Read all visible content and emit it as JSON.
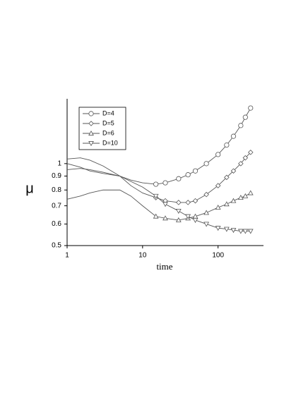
{
  "chart_data": {
    "type": "line",
    "xlabel": "time",
    "ylabel": "μ",
    "x": [
      1,
      1.5,
      2,
      3,
      5,
      7,
      10,
      15,
      20,
      30,
      40,
      50,
      70,
      100,
      130,
      160,
      200,
      230,
      270
    ],
    "series": [
      {
        "name": "D=4",
        "color": "#555555",
        "marker": "circle",
        "values": [
          0.95,
          0.96,
          0.95,
          0.93,
          0.9,
          0.87,
          0.85,
          0.84,
          0.85,
          0.88,
          0.91,
          0.94,
          1.0,
          1.08,
          1.17,
          1.26,
          1.38,
          1.48,
          1.6
        ]
      },
      {
        "name": "D=5",
        "color": "#555555",
        "marker": "diamond",
        "values": [
          1.04,
          1.05,
          1.03,
          0.98,
          0.9,
          0.83,
          0.78,
          0.75,
          0.73,
          0.72,
          0.72,
          0.73,
          0.77,
          0.83,
          0.89,
          0.94,
          1.0,
          1.05,
          1.1
        ]
      },
      {
        "name": "D=6",
        "color": "#555555",
        "marker": "triangle-up",
        "values": [
          0.74,
          0.76,
          0.78,
          0.8,
          0.8,
          0.76,
          0.7,
          0.64,
          0.63,
          0.62,
          0.63,
          0.64,
          0.66,
          0.69,
          0.71,
          0.73,
          0.75,
          0.76,
          0.78
        ]
      },
      {
        "name": "D=10",
        "color": "#555555",
        "marker": "triangle-down",
        "values": [
          1.0,
          0.97,
          0.94,
          0.92,
          0.9,
          0.86,
          0.82,
          0.76,
          0.71,
          0.67,
          0.64,
          0.62,
          0.6,
          0.58,
          0.575,
          0.57,
          0.565,
          0.565,
          0.565
        ]
      }
    ],
    "xlim": [
      1,
      400
    ],
    "ylim": [
      0.5,
      1.73
    ],
    "xlog": true,
    "ylog": true,
    "xticks": [
      1,
      10,
      100
    ],
    "yticks": [
      0.5,
      0.6,
      0.7,
      0.8,
      0.9,
      1
    ],
    "grid": false,
    "legend": "upper left"
  }
}
